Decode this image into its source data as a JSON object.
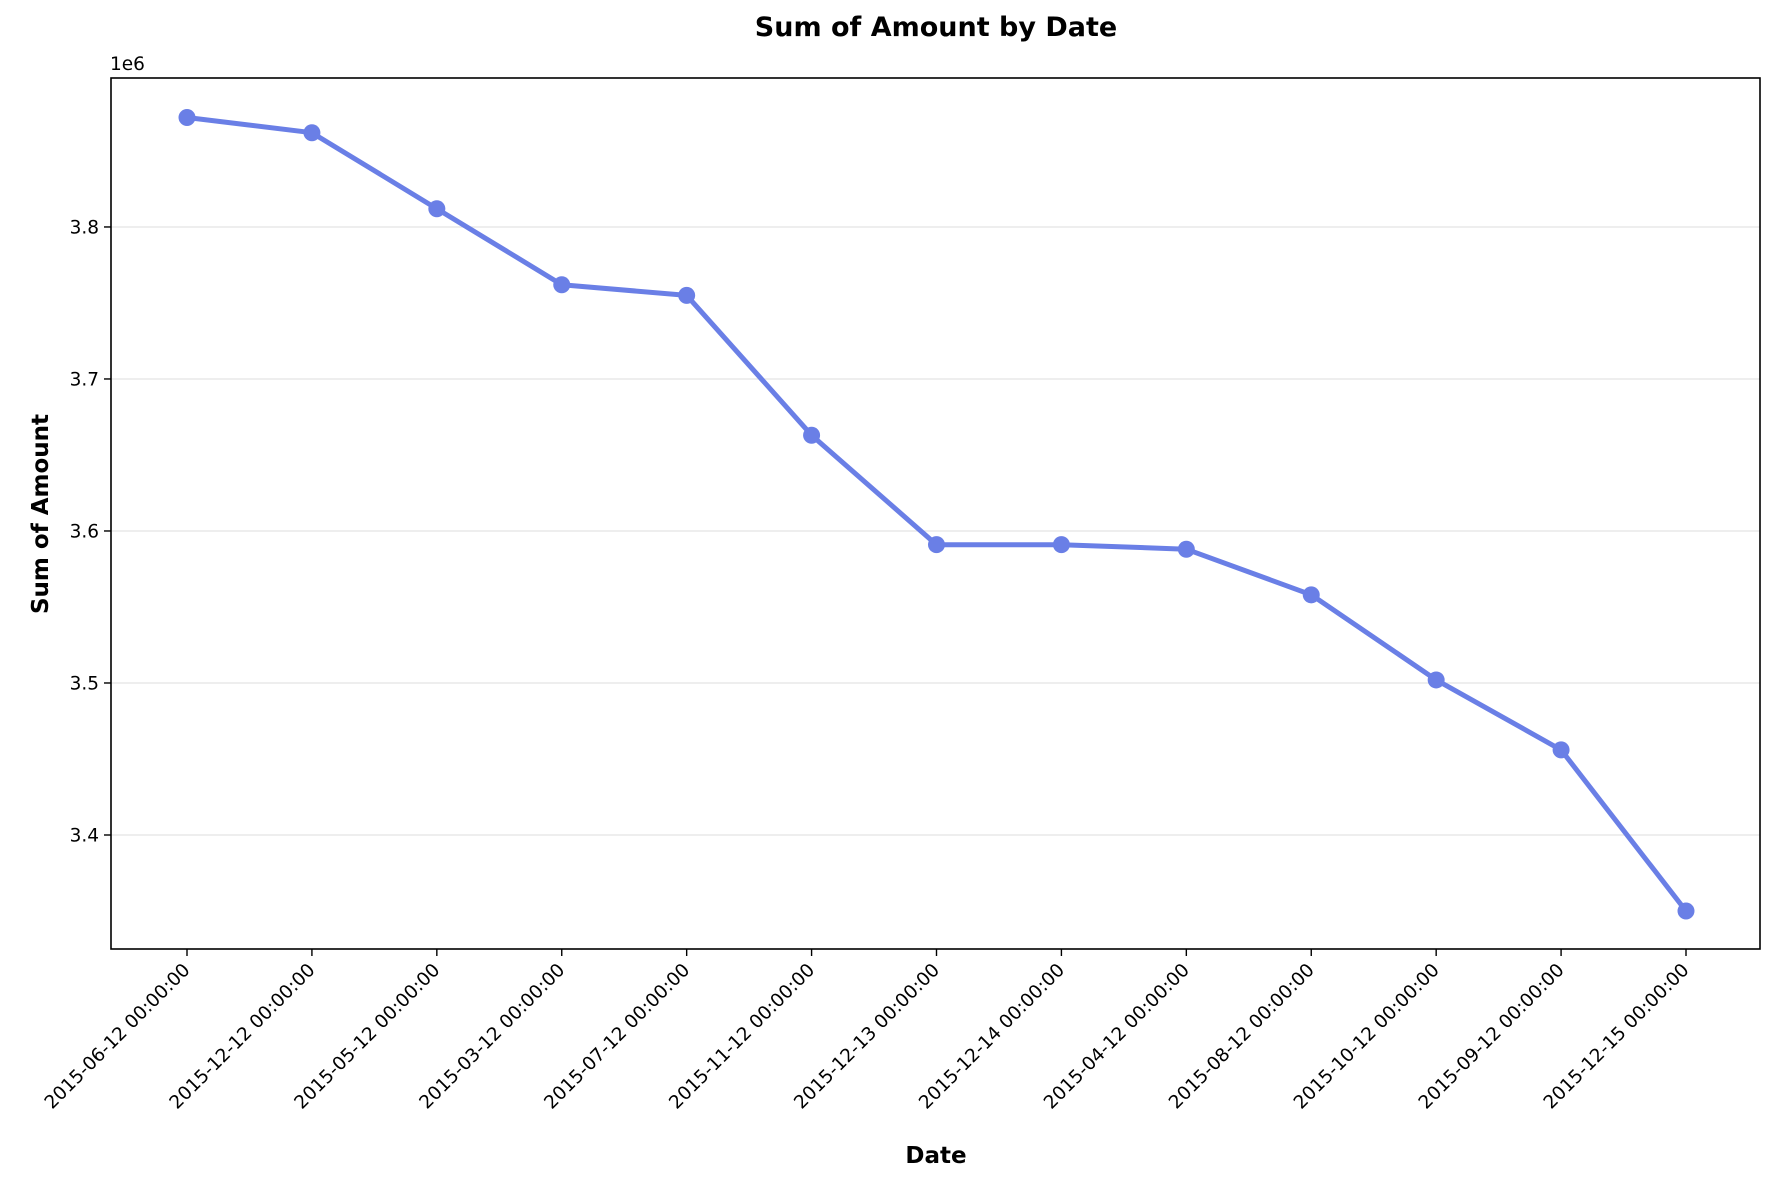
{
  "chart_data": {
    "type": "line",
    "title": "Sum of Amount by Date",
    "xlabel": "Date",
    "ylabel": "Sum of Amount",
    "y_offset_label": "1e6",
    "y_scale": 1000000,
    "categories": [
      "2015-06-12 00:00:00",
      "2015-12-12 00:00:00",
      "2015-05-12 00:00:00",
      "2015-03-12 00:00:00",
      "2015-07-12 00:00:00",
      "2015-11-12 00:00:00",
      "2015-12-13 00:00:00",
      "2015-12-14 00:00:00",
      "2015-04-12 00:00:00",
      "2015-08-12 00:00:00",
      "2015-10-12 00:00:00",
      "2015-09-12 00:00:00",
      "2015-12-15 00:00:00"
    ],
    "series": [
      {
        "color": "#6a7fe6",
        "values": [
          3872000,
          3862000,
          3812000,
          3762000,
          3755000,
          3663000,
          3591000,
          3591000,
          3588000,
          3558000,
          3502000,
          3456000,
          3350000
        ]
      }
    ],
    "ylim": [
      3325000,
      3898000
    ],
    "yticks": [
      3400000,
      3500000,
      3600000,
      3700000,
      3800000
    ],
    "ytick_labels": [
      "3.4",
      "3.5",
      "3.6",
      "3.7",
      "3.8"
    ],
    "grid": "y",
    "legend": "none"
  }
}
